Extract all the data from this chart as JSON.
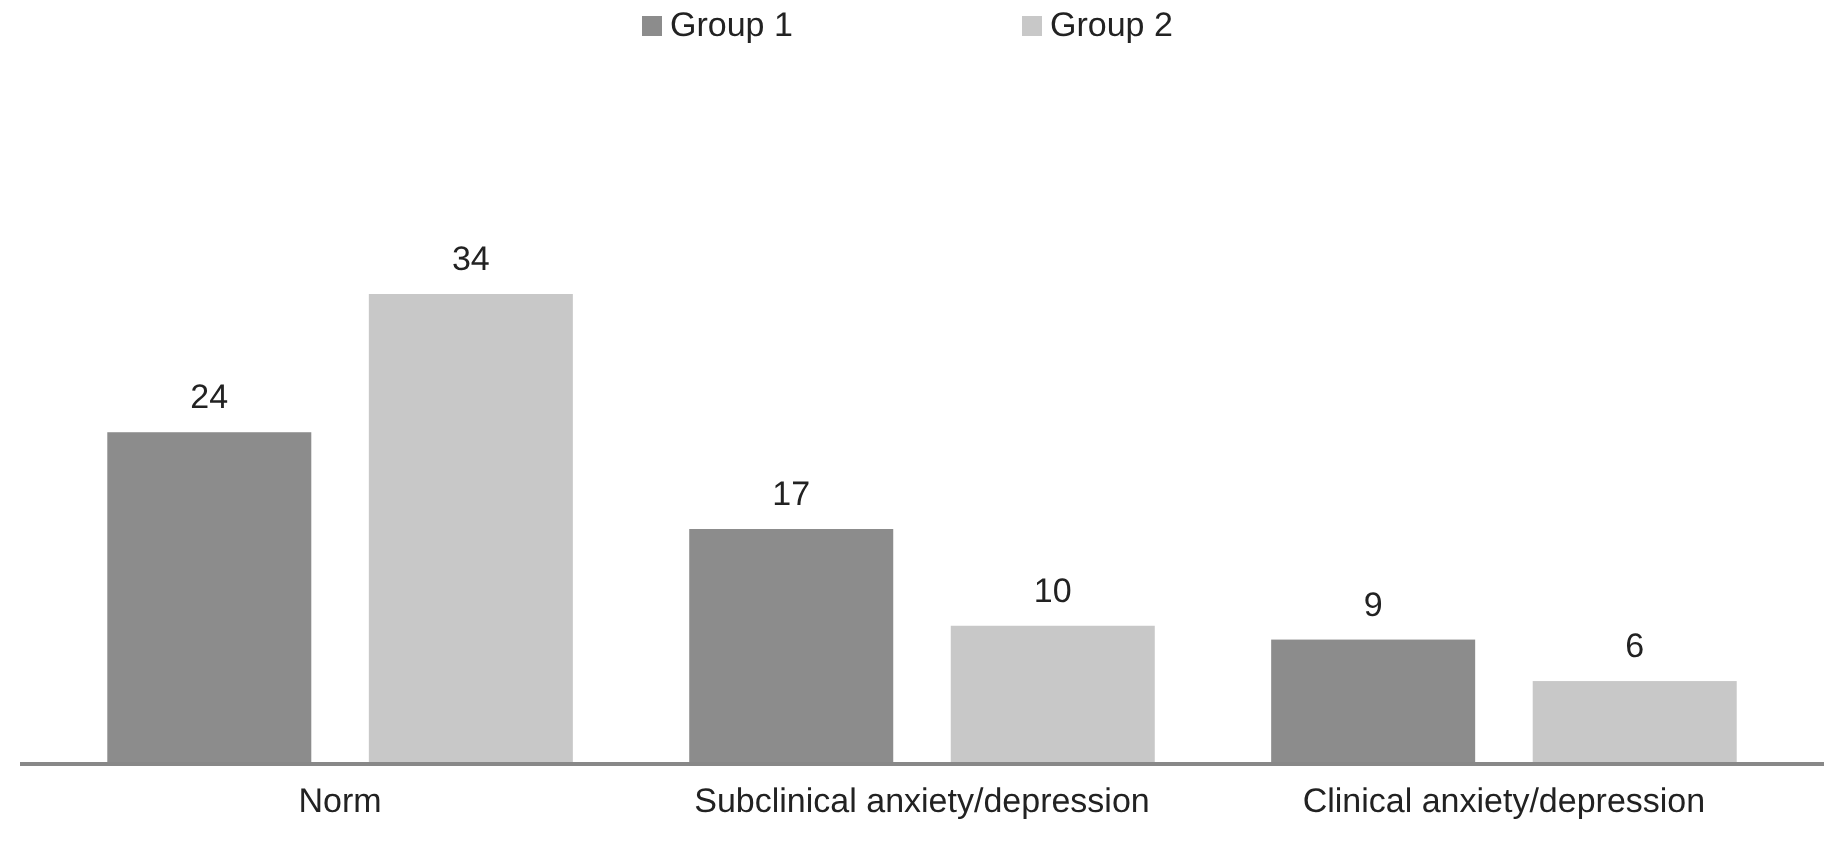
{
  "chart_data": {
    "type": "bar",
    "categories": [
      "Norm",
      "Subclinical anxiety/depression",
      "Clinical anxiety/depression"
    ],
    "series": [
      {
        "name": "Group 1",
        "color": "#8c8c8c",
        "values": [
          24,
          17,
          9
        ]
      },
      {
        "name": "Group 2",
        "color": "#c8c8c8",
        "values": [
          34,
          10,
          6
        ]
      }
    ],
    "data_labels": true,
    "legend": "top",
    "grid": false
  }
}
